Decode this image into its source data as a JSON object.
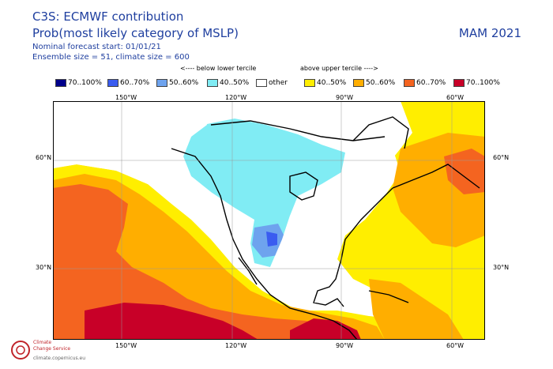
{
  "header": {
    "title": "C3S: ECMWF contribution",
    "subtitle": "Prob(most likely category of MSLP)",
    "forecast_start": "Nominal forecast start: 01/01/21",
    "ensemble": "Ensemble size = 51, climate size = 600",
    "season": "MAM 2021"
  },
  "legend": {
    "below_caption": "<---- below lower tercile",
    "above_caption": "above upper tercile ---->",
    "items": [
      {
        "label": "70..100%",
        "color": "#00008b"
      },
      {
        "label": "60..70%",
        "color": "#3a5cf0"
      },
      {
        "label": "50..60%",
        "color": "#6ea3ee"
      },
      {
        "label": "40..50%",
        "color": "#80ecf4"
      },
      {
        "label": "other",
        "color": "#ffffff"
      },
      {
        "label": "40..50%",
        "color": "#ffee00"
      },
      {
        "label": "50..60%",
        "color": "#ffae00"
      },
      {
        "label": "60..70%",
        "color": "#f46420"
      },
      {
        "label": "70..100%",
        "color": "#c80028"
      }
    ]
  },
  "axes": {
    "top_lon": [
      "150°W",
      "120°W",
      "90°W",
      "60°W"
    ],
    "bottom_lon": [
      "150°W",
      "120°W",
      "90°W",
      "60°W"
    ],
    "left_lat": [
      "60°N",
      "30°N"
    ],
    "right_lat": [
      "60°N",
      "30°N"
    ]
  },
  "logo": {
    "line1": "Climate",
    "line2": "Change Service",
    "line3": "climate.copernicus.eu"
  }
}
